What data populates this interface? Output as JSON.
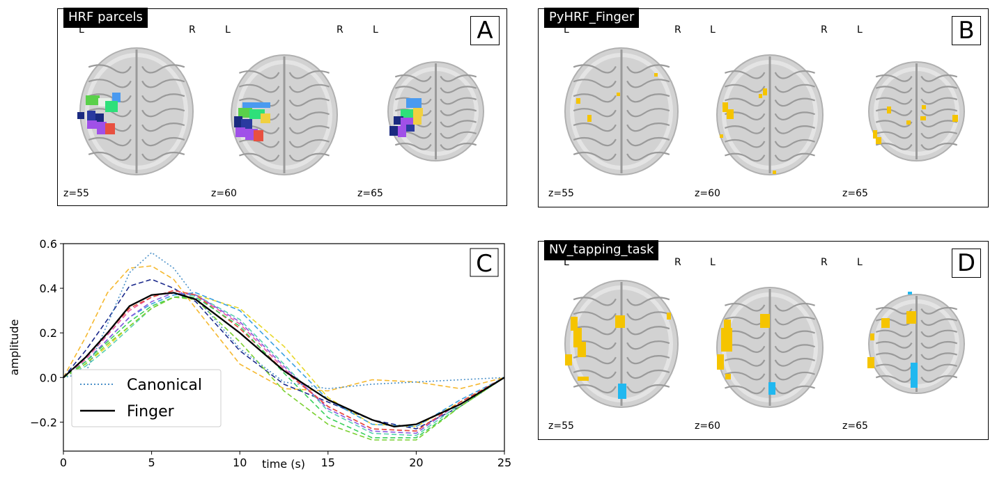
{
  "panels": [
    {
      "id": "A",
      "title": "HRF parcels",
      "letter": "A",
      "orient": [
        "L",
        "R",
        "L",
        "R",
        "L"
      ],
      "slices": [
        "z=55",
        "z=60",
        "z=65"
      ]
    },
    {
      "id": "B",
      "title": "PyHRF_Finger",
      "letter": "B",
      "orient": [
        "L",
        "R",
        "L",
        "R",
        "L"
      ],
      "slices": [
        "z=55",
        "z=60",
        "z=65"
      ]
    },
    {
      "id": "D",
      "title": "NV_tapping_task",
      "letter": "D",
      "orient": [
        "L",
        "R",
        "L",
        "R",
        "L"
      ],
      "slices": [
        "z=55",
        "z=60",
        "z=65"
      ]
    }
  ],
  "chart_letter": "C",
  "chart_data": {
    "type": "line",
    "xlabel": "time (s)",
    "ylabel": "amplitude",
    "xlim": [
      0,
      25
    ],
    "ylim": [
      -0.33,
      0.6
    ],
    "xticks": [
      0,
      5,
      10,
      15,
      20,
      25
    ],
    "yticks": [
      -0.2,
      0.0,
      0.2,
      0.4,
      0.6
    ],
    "ytick_labels": [
      "−0.2",
      "0.0",
      "0.2",
      "0.4",
      "0.6"
    ],
    "legend_position": "lower-left",
    "series": [
      {
        "name": "Canonical",
        "color": "#4a90c8",
        "style": "dotted",
        "legend": true,
        "x": [
          0,
          1.25,
          2.5,
          3.75,
          5,
          6.25,
          7.5,
          10,
          12.5,
          15,
          17.5,
          20,
          22.5,
          25
        ],
        "y": [
          0,
          0.02,
          0.24,
          0.47,
          0.56,
          0.49,
          0.36,
          0.13,
          -0.02,
          -0.05,
          -0.03,
          -0.02,
          -0.01,
          0
        ]
      },
      {
        "name": "Finger",
        "color": "#000000",
        "style": "solid",
        "legend": true,
        "x": [
          0,
          1.25,
          2.5,
          3.75,
          5,
          6.25,
          7.5,
          10,
          12.5,
          15,
          17.5,
          18.75,
          20,
          22.5,
          25
        ],
        "y": [
          0,
          0.09,
          0.2,
          0.32,
          0.37,
          0.38,
          0.35,
          0.2,
          0.03,
          -0.1,
          -0.19,
          -0.22,
          -0.21,
          -0.12,
          0
        ]
      },
      {
        "color": "#f5b82e",
        "style": "dashed",
        "legend": false,
        "x": [
          0,
          1.25,
          2.5,
          3.75,
          5,
          6.25,
          7.5,
          10,
          12.5,
          15,
          17.5,
          20,
          22.5,
          25
        ],
        "y": [
          0,
          0.18,
          0.38,
          0.49,
          0.5,
          0.44,
          0.31,
          0.06,
          -0.05,
          -0.06,
          -0.01,
          -0.02,
          -0.05,
          0
        ]
      },
      {
        "color": "#1c2a8c",
        "style": "dashed",
        "legend": false,
        "x": [
          0,
          1.25,
          2.5,
          3.75,
          5,
          6.25,
          7.5,
          10,
          12.5,
          15,
          17.5,
          20,
          22.5,
          25
        ],
        "y": [
          0,
          0.12,
          0.26,
          0.41,
          0.44,
          0.4,
          0.34,
          0.12,
          -0.03,
          -0.11,
          -0.19,
          -0.23,
          -0.13,
          0
        ]
      },
      {
        "color": "#e8d82a",
        "style": "dashed",
        "legend": false,
        "x": [
          0,
          1.25,
          2.5,
          3.75,
          5,
          6.25,
          7.5,
          10,
          12.5,
          15,
          17.5,
          20,
          22.5,
          25
        ],
        "y": [
          0,
          0.06,
          0.14,
          0.23,
          0.31,
          0.36,
          0.37,
          0.31,
          0.14,
          -0.09,
          -0.21,
          -0.22,
          -0.11,
          0
        ]
      },
      {
        "color": "#3aa0e0",
        "style": "dashed",
        "legend": false,
        "x": [
          0,
          1.25,
          2.5,
          3.75,
          5,
          6.25,
          7.5,
          10,
          12.5,
          15,
          17.5,
          20,
          22.5,
          25
        ],
        "y": [
          0,
          0.07,
          0.17,
          0.27,
          0.33,
          0.37,
          0.38,
          0.3,
          0.1,
          -0.1,
          -0.21,
          -0.22,
          -0.1,
          0
        ]
      },
      {
        "color": "#5ad0b0",
        "style": "dashed",
        "legend": false,
        "x": [
          0,
          1.25,
          2.5,
          3.75,
          5,
          6.25,
          7.5,
          10,
          12.5,
          15,
          17.5,
          20,
          22.5,
          25
        ],
        "y": [
          0,
          0.05,
          0.13,
          0.22,
          0.31,
          0.36,
          0.37,
          0.26,
          0.06,
          -0.15,
          -0.25,
          -0.26,
          -0.12,
          0
        ]
      },
      {
        "color": "#e85aa0",
        "style": "dashed",
        "legend": false,
        "x": [
          0,
          1.25,
          2.5,
          3.75,
          5,
          6.25,
          7.5,
          10,
          12.5,
          15,
          17.5,
          20,
          22.5,
          25
        ],
        "y": [
          0,
          0.08,
          0.19,
          0.3,
          0.36,
          0.39,
          0.37,
          0.24,
          0.04,
          -0.13,
          -0.23,
          -0.24,
          -0.11,
          0
        ]
      },
      {
        "color": "#8a5ae0",
        "style": "dashed",
        "legend": false,
        "x": [
          0,
          1.25,
          2.5,
          3.75,
          5,
          6.25,
          7.5,
          10,
          12.5,
          15,
          17.5,
          20,
          22.5,
          25
        ],
        "y": [
          0,
          0.07,
          0.17,
          0.27,
          0.34,
          0.38,
          0.37,
          0.25,
          0.05,
          -0.14,
          -0.24,
          -0.25,
          -0.11,
          0
        ]
      },
      {
        "color": "#e84a3a",
        "style": "dashed",
        "legend": false,
        "x": [
          0,
          1.25,
          2.5,
          3.75,
          5,
          6.25,
          7.5,
          10,
          12.5,
          15,
          17.5,
          20,
          22.5,
          25
        ],
        "y": [
          0,
          0.09,
          0.2,
          0.31,
          0.36,
          0.39,
          0.37,
          0.22,
          0.03,
          -0.13,
          -0.23,
          -0.24,
          -0.11,
          0
        ]
      },
      {
        "color": "#3ad05a",
        "style": "dashed",
        "legend": false,
        "x": [
          0,
          1.25,
          2.5,
          3.75,
          5,
          6.25,
          7.5,
          10,
          12.5,
          15,
          17.5,
          20,
          22.5,
          25
        ],
        "y": [
          0,
          0.07,
          0.16,
          0.25,
          0.32,
          0.36,
          0.36,
          0.23,
          0.02,
          -0.18,
          -0.27,
          -0.27,
          -0.13,
          0
        ]
      },
      {
        "color": "#7ad030",
        "style": "dashed",
        "legend": false,
        "x": [
          0,
          1.25,
          2.5,
          3.75,
          5,
          6.25,
          7.5,
          10,
          12.5,
          15,
          17.5,
          20,
          22.5,
          25
        ],
        "y": [
          0,
          0.06,
          0.15,
          0.23,
          0.31,
          0.36,
          0.35,
          0.16,
          -0.06,
          -0.21,
          -0.28,
          -0.28,
          -0.13,
          0
        ]
      }
    ]
  },
  "blob_colors": {
    "parcels": [
      "#5ad04a",
      "#4a9af0",
      "#2ee07a",
      "#1a2a80",
      "#a050e8",
      "#e85040",
      "#f0d040",
      "#2a3aa0"
    ],
    "positive": "#f5c400",
    "negative": "#20b8f0",
    "brain_fill": "#d2d2d2",
    "brain_sulci": "#9a9a9a"
  }
}
